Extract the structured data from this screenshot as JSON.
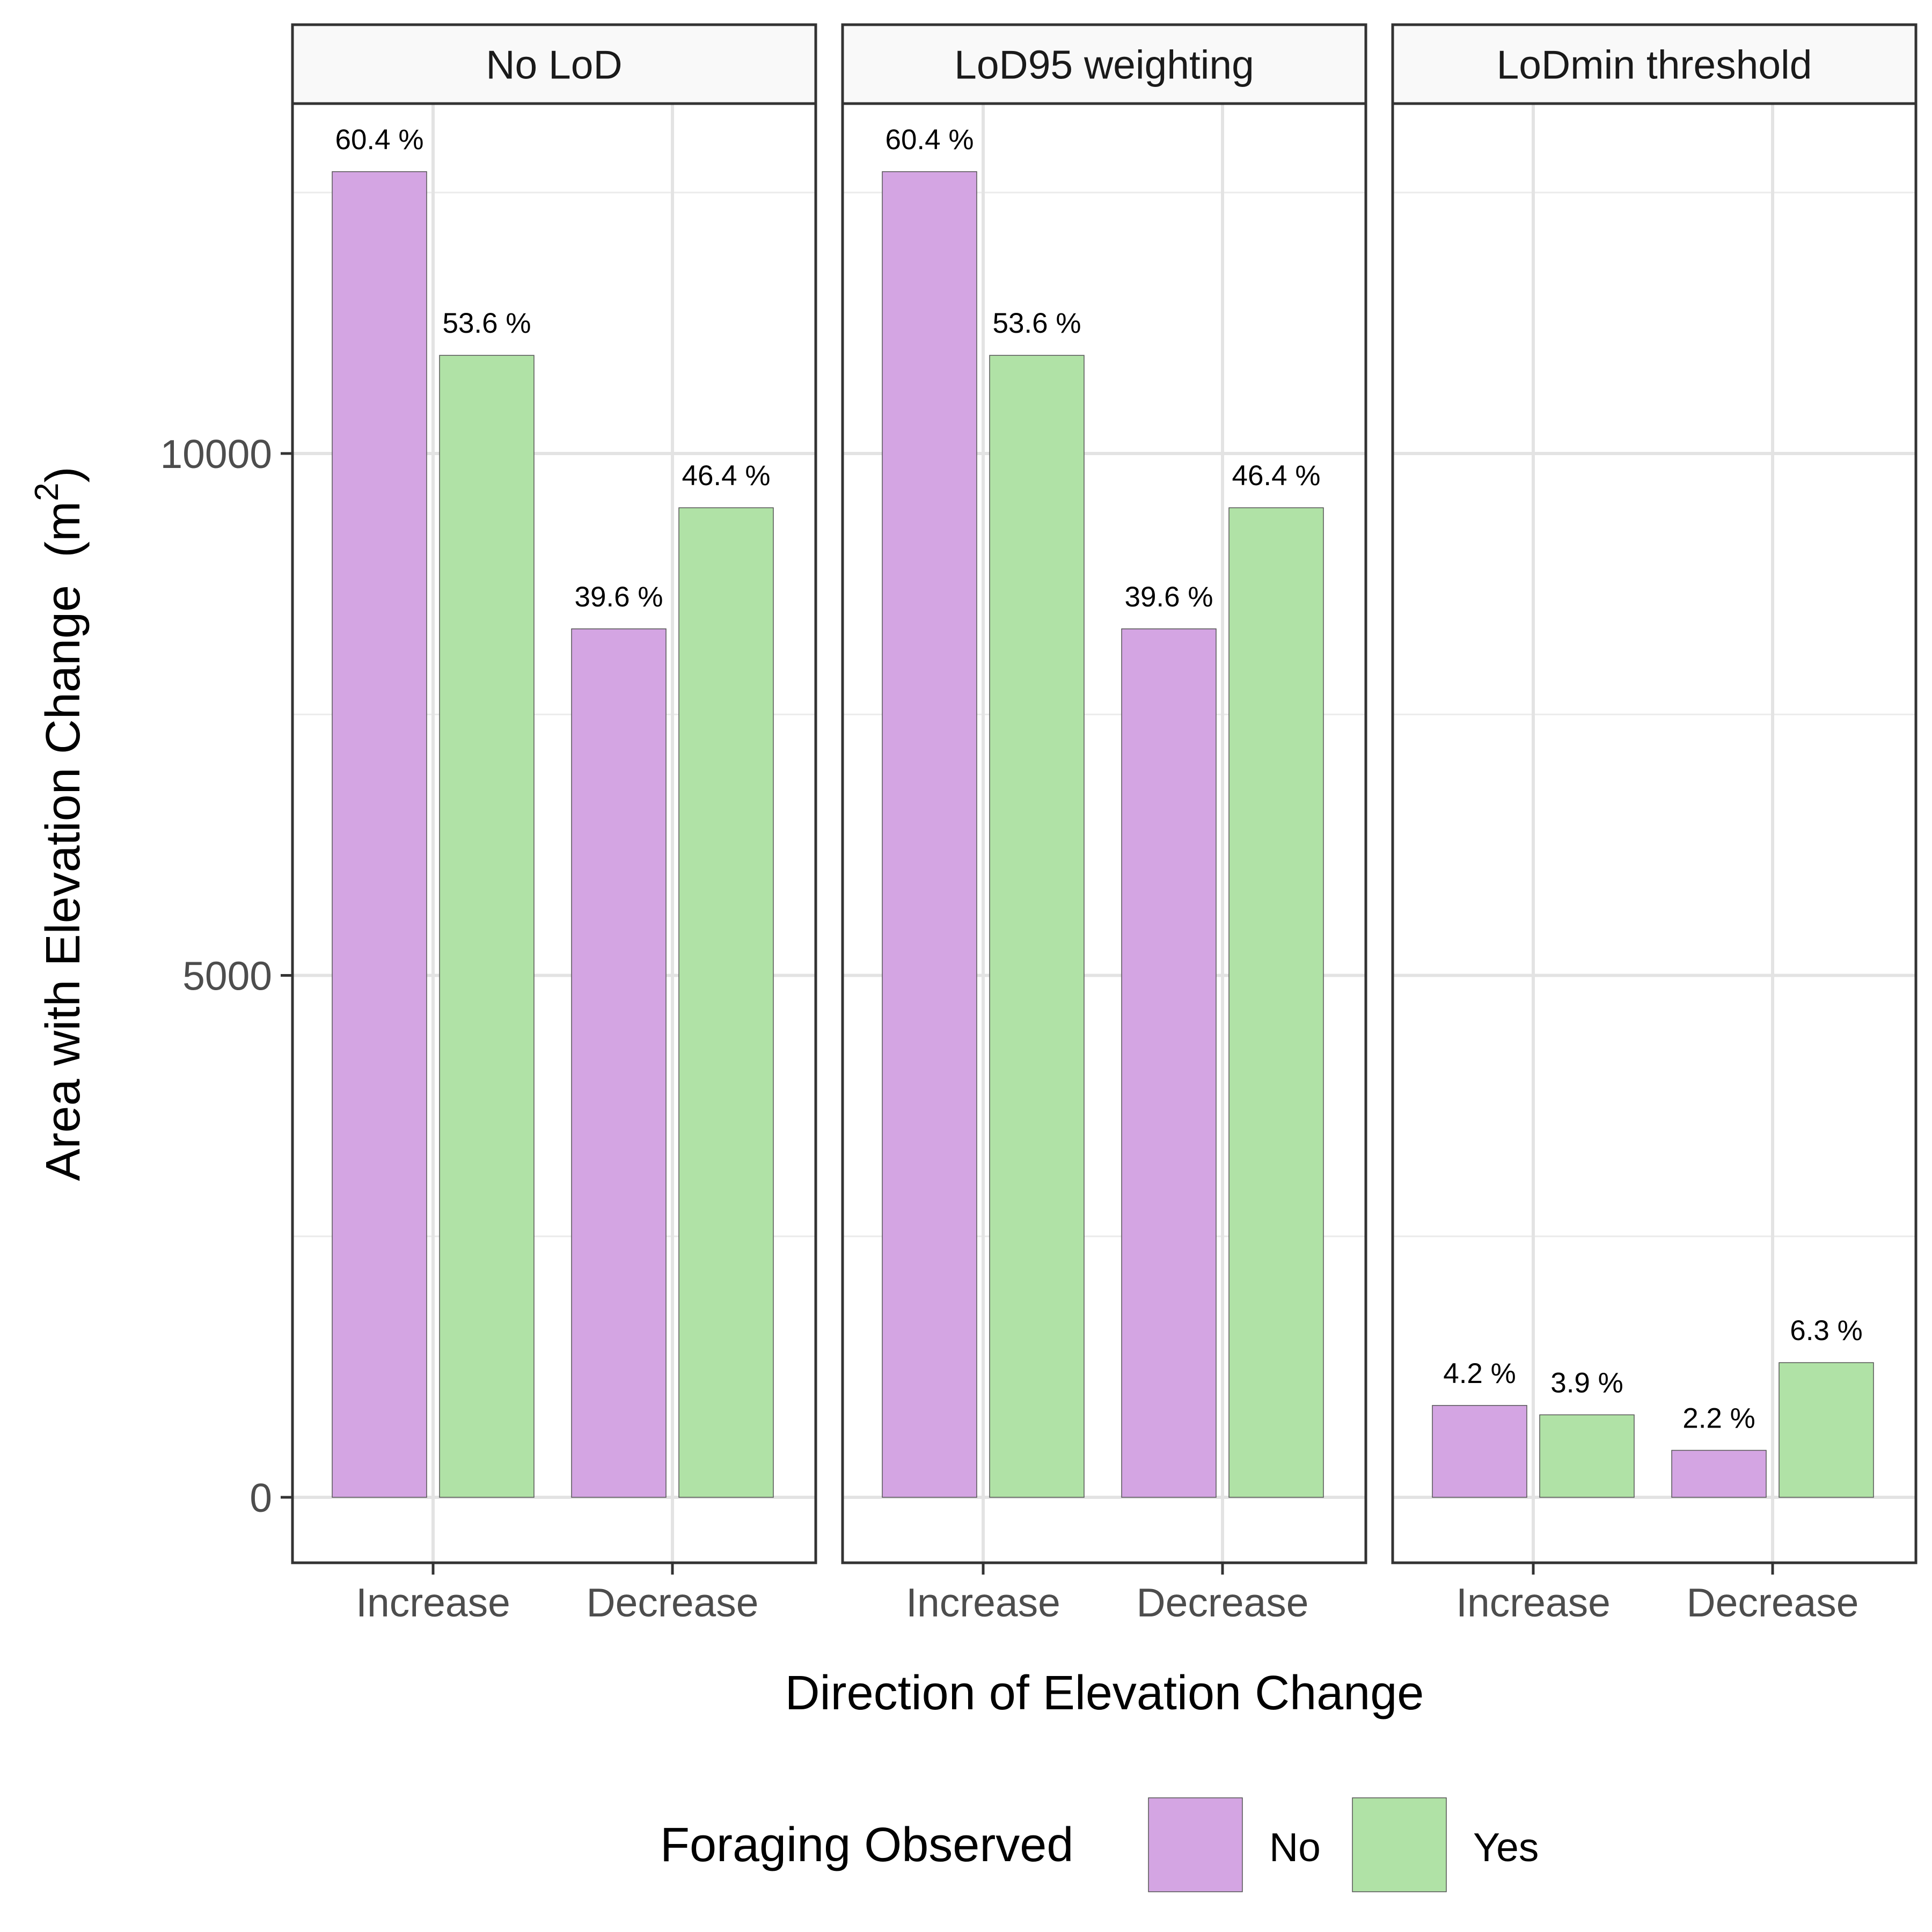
{
  "chart_data": {
    "type": "bar",
    "xlabel": "Direction of Elevation Change",
    "ylabel": "Area with Elevation Change",
    "ylabel_unit": "(m",
    "ylabel_unit_sup": "2",
    "ylabel_unit_close": ")",
    "ylim": [
      -650,
      13750
    ],
    "yticks": [
      0,
      5000,
      10000
    ],
    "ytick_labels": [
      "0",
      "5000",
      "10000"
    ],
    "y_minor_gridlines": [
      2500,
      7500,
      12500
    ],
    "grid": true,
    "legend": {
      "title": "Foraging Observed",
      "position": "bottom",
      "entries": [
        {
          "name": "No",
          "color": "#d4a5e3"
        },
        {
          "name": "Yes",
          "color": "#b0e2a6"
        }
      ]
    },
    "categories": [
      "Increase",
      "Decrease"
    ],
    "panels": [
      {
        "title": "No LoD",
        "series": [
          {
            "name": "No",
            "values": [
              12700,
              8320
            ],
            "labels": [
              "60.4 %",
              "39.6 %"
            ]
          },
          {
            "name": "Yes",
            "values": [
              10940,
              9480
            ],
            "labels": [
              "53.6 %",
              "46.4 %"
            ]
          }
        ]
      },
      {
        "title": "LoD95 weighting",
        "series": [
          {
            "name": "No",
            "values": [
              12700,
              8320
            ],
            "labels": [
              "60.4 %",
              "39.6 %"
            ]
          },
          {
            "name": "Yes",
            "values": [
              10940,
              9480
            ],
            "labels": [
              "53.6 %",
              "46.4 %"
            ]
          }
        ]
      },
      {
        "title": "LoDmin threshold",
        "series": [
          {
            "name": "No",
            "values": [
              880,
              450
            ],
            "labels": [
              "4.2 %",
              "2.2 %"
            ]
          },
          {
            "name": "Yes",
            "values": [
              790,
              1290
            ],
            "labels": [
              "3.9 %",
              "6.3 %"
            ]
          }
        ]
      }
    ]
  }
}
